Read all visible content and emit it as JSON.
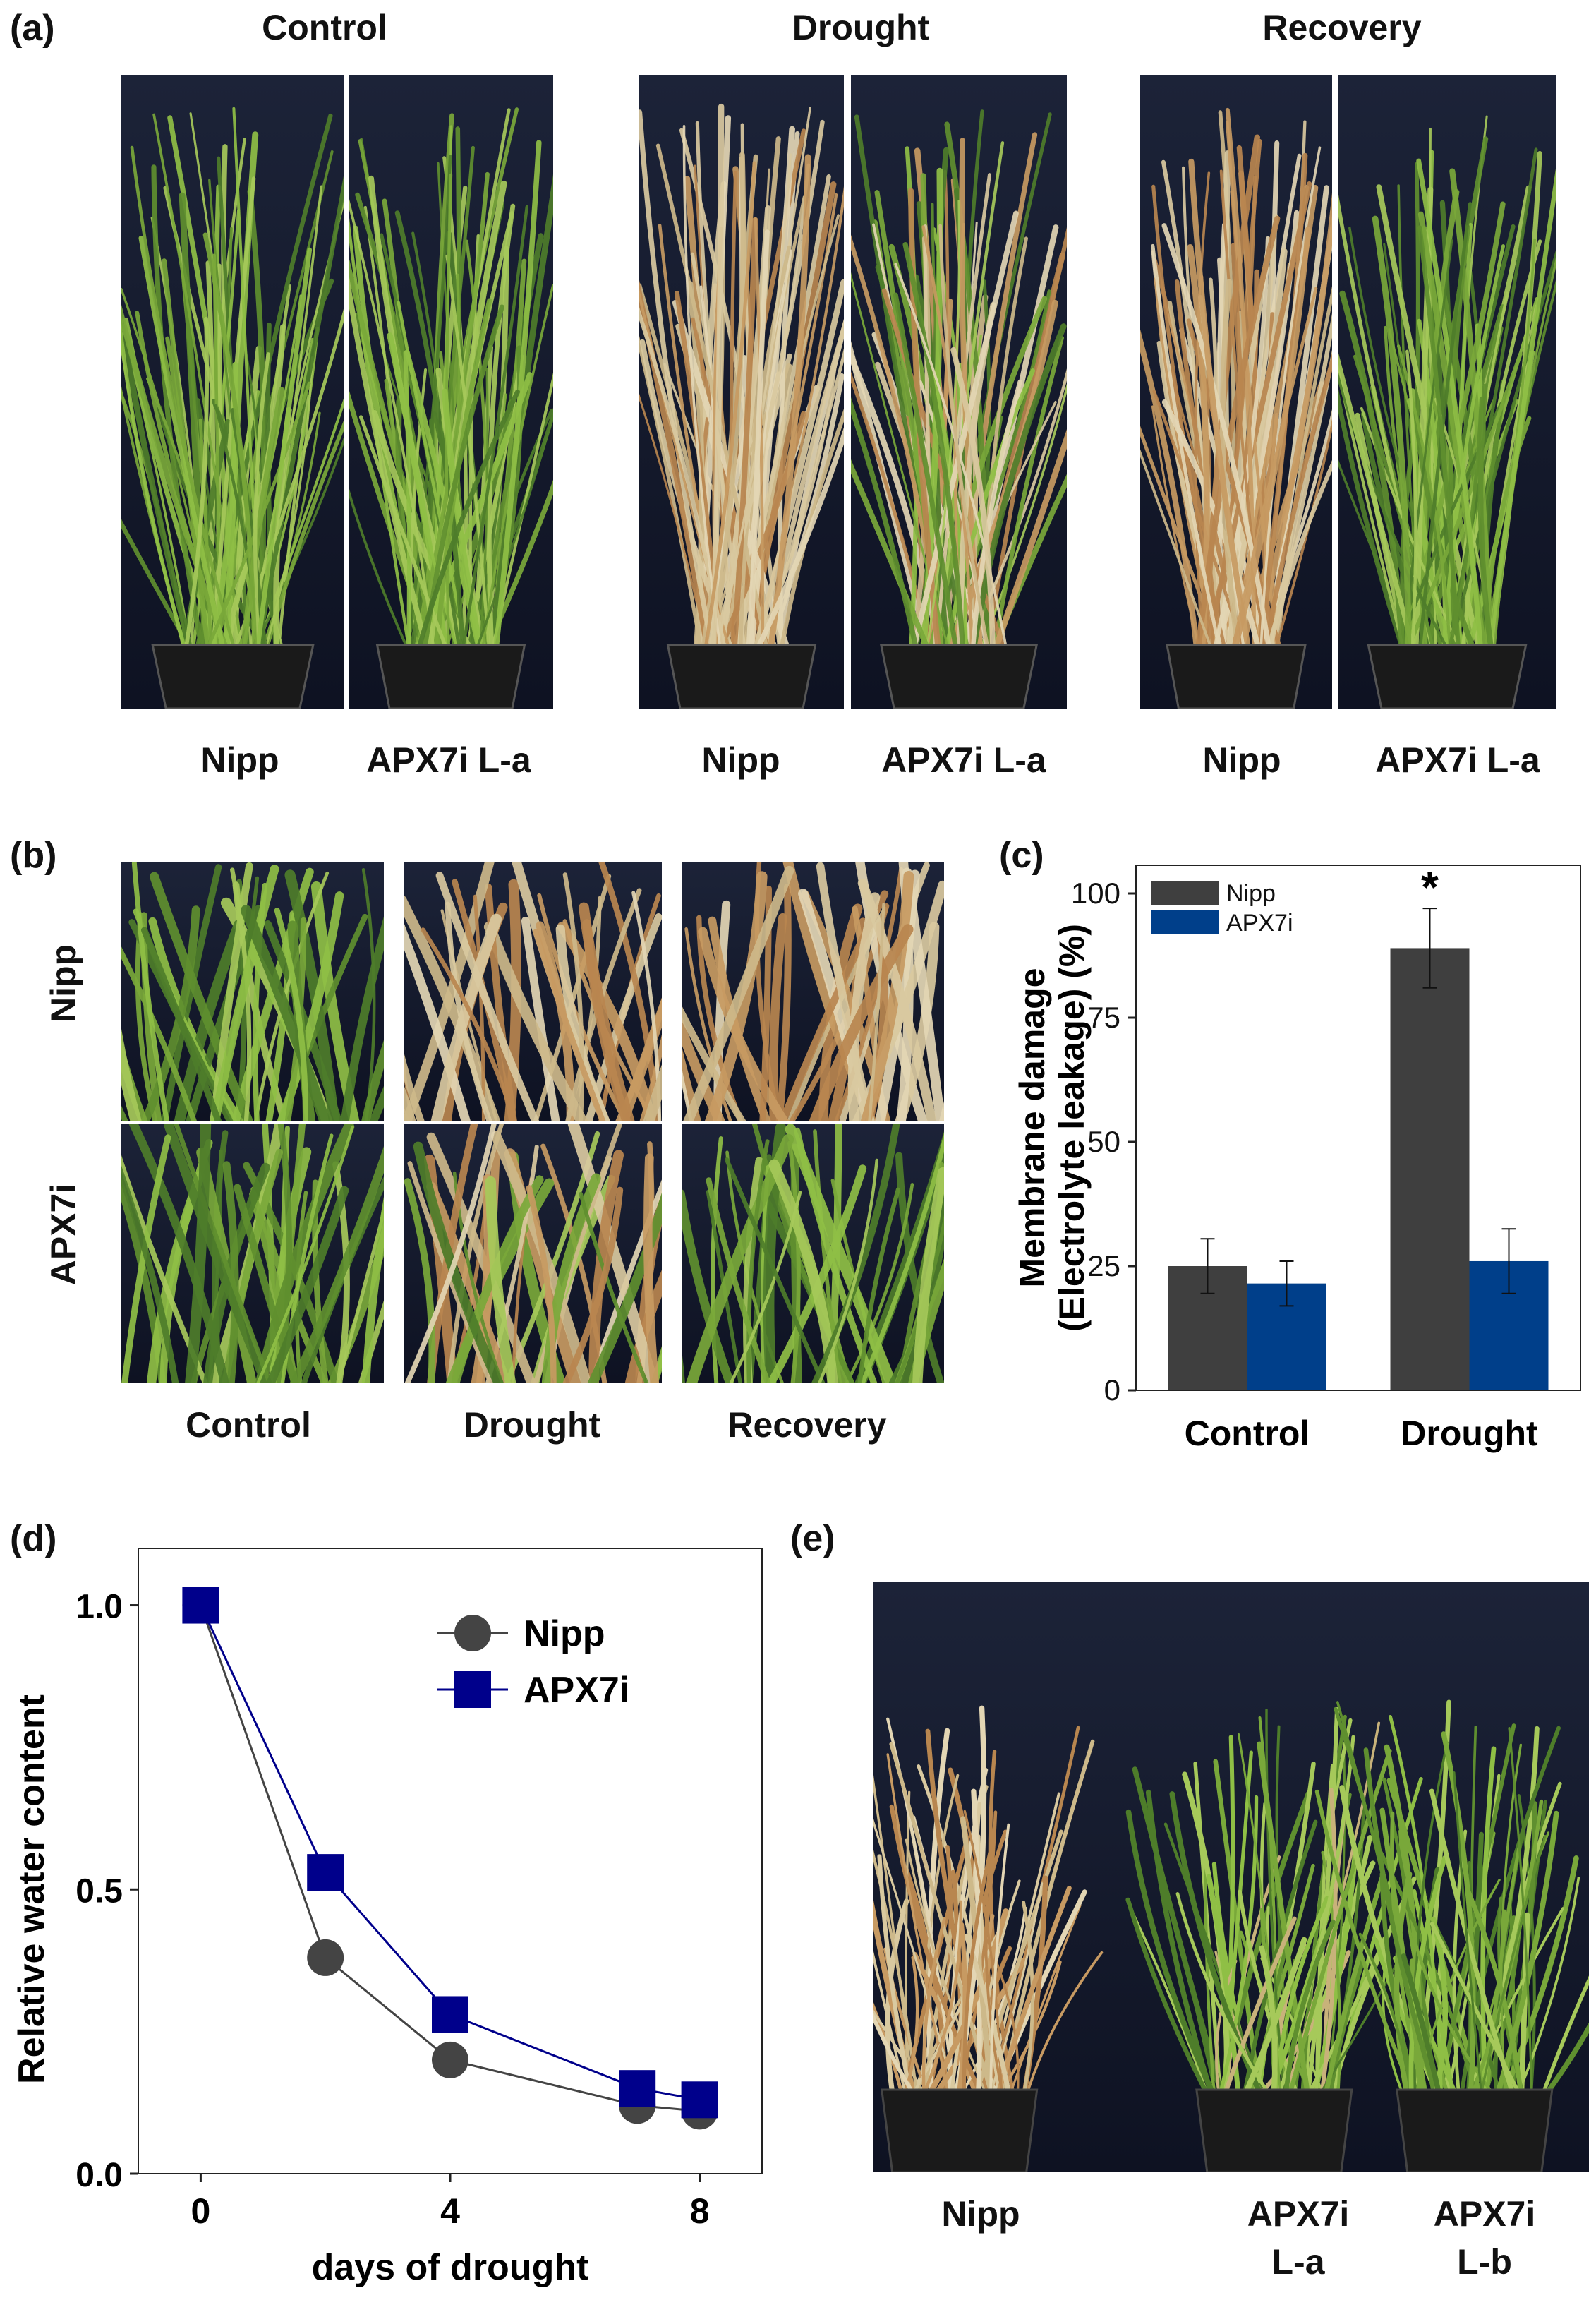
{
  "panels": {
    "a": {
      "label": "(a)",
      "conditions": [
        "Control",
        "Drought",
        "Recovery"
      ],
      "plants": [
        "Nipp",
        "APX7i L-a"
      ]
    },
    "b": {
      "label": "(b)",
      "rows": [
        "Nipp",
        "APX7i"
      ],
      "columns": [
        "Control",
        "Drought",
        "Recovery"
      ]
    },
    "c": {
      "label": "(c)"
    },
    "d": {
      "label": "(d)"
    },
    "e": {
      "label": "(e)",
      "plants": [
        {
          "line1": "Nipp",
          "line2": ""
        },
        {
          "line1": "APX7i",
          "line2": "L-a"
        },
        {
          "line1": "APX7i",
          "line2": "L-b"
        }
      ]
    }
  },
  "colors": {
    "nipp_bar": "#3f3f3f",
    "apx7i_bar": "#003f8a",
    "nipp_line": "#444444",
    "apx7i_line": "#00008b",
    "photo_bg": "#141a2c",
    "leaf_green": "#6f9a3a",
    "leaf_dry": "#d8c9a0"
  },
  "chart_data": [
    {
      "id": "c",
      "type": "bar",
      "title": "",
      "categories": [
        "Control",
        "Drought"
      ],
      "series": [
        {
          "name": "Nipp",
          "values": [
            25,
            89
          ],
          "errors": [
            5.5,
            8
          ],
          "color": "#3f3f3f"
        },
        {
          "name": "APX7i",
          "values": [
            21.5,
            26
          ],
          "errors": [
            4.5,
            6.5
          ],
          "color": "#003f8a"
        }
      ],
      "annotations": [
        {
          "category": "Drought",
          "series": "Nipp",
          "text": "*"
        }
      ],
      "ylabel_line1": "Membrane damage",
      "ylabel_line2": "(Electrolyte leakage) (%)",
      "xlabel": "",
      "ylim": [
        0,
        100
      ],
      "yticks": [
        "0",
        "25",
        "50",
        "75",
        "100"
      ],
      "legend": "top-left"
    },
    {
      "id": "d",
      "type": "line",
      "title": "",
      "x": [
        0,
        2,
        4,
        7,
        8
      ],
      "series": [
        {
          "name": "Nipp",
          "values": [
            1.0,
            0.38,
            0.2,
            0.12,
            0.11
          ],
          "marker": "circle",
          "color": "#444444"
        },
        {
          "name": "APX7i",
          "values": [
            1.0,
            0.53,
            0.28,
            0.15,
            0.13
          ],
          "marker": "square",
          "color": "#00008b"
        }
      ],
      "xlabel": "days of drought",
      "ylabel": "Relative water content",
      "xticks": [
        "0",
        "4",
        "8"
      ],
      "yticks": [
        "0.0",
        "0.5",
        "1.0"
      ],
      "xlim": [
        -1,
        9
      ],
      "ylim": [
        0,
        1.1
      ],
      "legend": "top-right"
    }
  ]
}
